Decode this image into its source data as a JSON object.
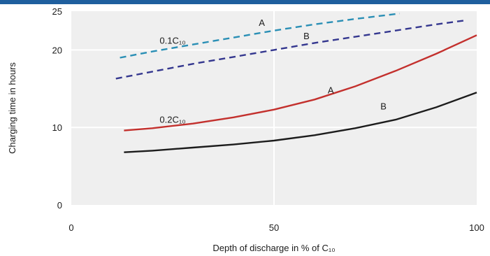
{
  "chart_data": {
    "type": "line",
    "title": "",
    "xlabel": "Depth of discharge in % of C₁₀",
    "ylabel": "Charging time in hours",
    "xlim": [
      0,
      100
    ],
    "ylim": [
      0,
      25
    ],
    "x_ticks": [
      "0",
      "50",
      "100"
    ],
    "y_ticks": [
      "0",
      "10",
      "20",
      "25"
    ],
    "grid": "white vertical and horizontal lines",
    "legend": "none (curves labelled inline)",
    "background_color": "#efefef",
    "series": [
      {
        "group": "0.1C₁₀",
        "label": "A",
        "style": "dashed",
        "color": "#2a8fb5",
        "x": [
          12,
          20,
          30,
          40,
          50,
          60,
          70,
          81
        ],
        "y": [
          19.0,
          19.8,
          20.7,
          21.6,
          22.5,
          23.3,
          24.0,
          24.7
        ]
      },
      {
        "group": "0.1C₁₀",
        "label": "B",
        "style": "dashed",
        "color": "#34378f",
        "x": [
          11,
          20,
          30,
          40,
          50,
          60,
          70,
          80,
          90,
          97
        ],
        "y": [
          16.3,
          17.2,
          18.2,
          19.1,
          20.0,
          20.9,
          21.7,
          22.5,
          23.3,
          23.8
        ]
      },
      {
        "group": "0.2C₁₀",
        "label": "A",
        "style": "solid",
        "color": "#c3302d",
        "x": [
          13,
          20,
          30,
          40,
          50,
          60,
          70,
          80,
          90,
          100
        ],
        "y": [
          9.6,
          9.9,
          10.5,
          11.3,
          12.3,
          13.6,
          15.3,
          17.3,
          19.5,
          21.9
        ]
      },
      {
        "group": "0.2C₁₀",
        "label": "B",
        "style": "solid",
        "color": "#1c1c1c",
        "x": [
          13,
          20,
          30,
          40,
          50,
          60,
          70,
          80,
          90,
          100
        ],
        "y": [
          6.8,
          7.0,
          7.4,
          7.8,
          8.3,
          9.0,
          9.9,
          11.0,
          12.6,
          14.5
        ]
      }
    ],
    "annotations": [
      {
        "text": "0.1C₁₀",
        "x": 25,
        "y": 20.8
      },
      {
        "text": "A",
        "x": 47,
        "y": 23.1
      },
      {
        "text": "B",
        "x": 58,
        "y": 21.4
      },
      {
        "text": "0.2C₁₀",
        "x": 25,
        "y": 10.6
      },
      {
        "text": "A",
        "x": 64,
        "y": 14.4
      },
      {
        "text": "B",
        "x": 77,
        "y": 12.3
      }
    ]
  }
}
